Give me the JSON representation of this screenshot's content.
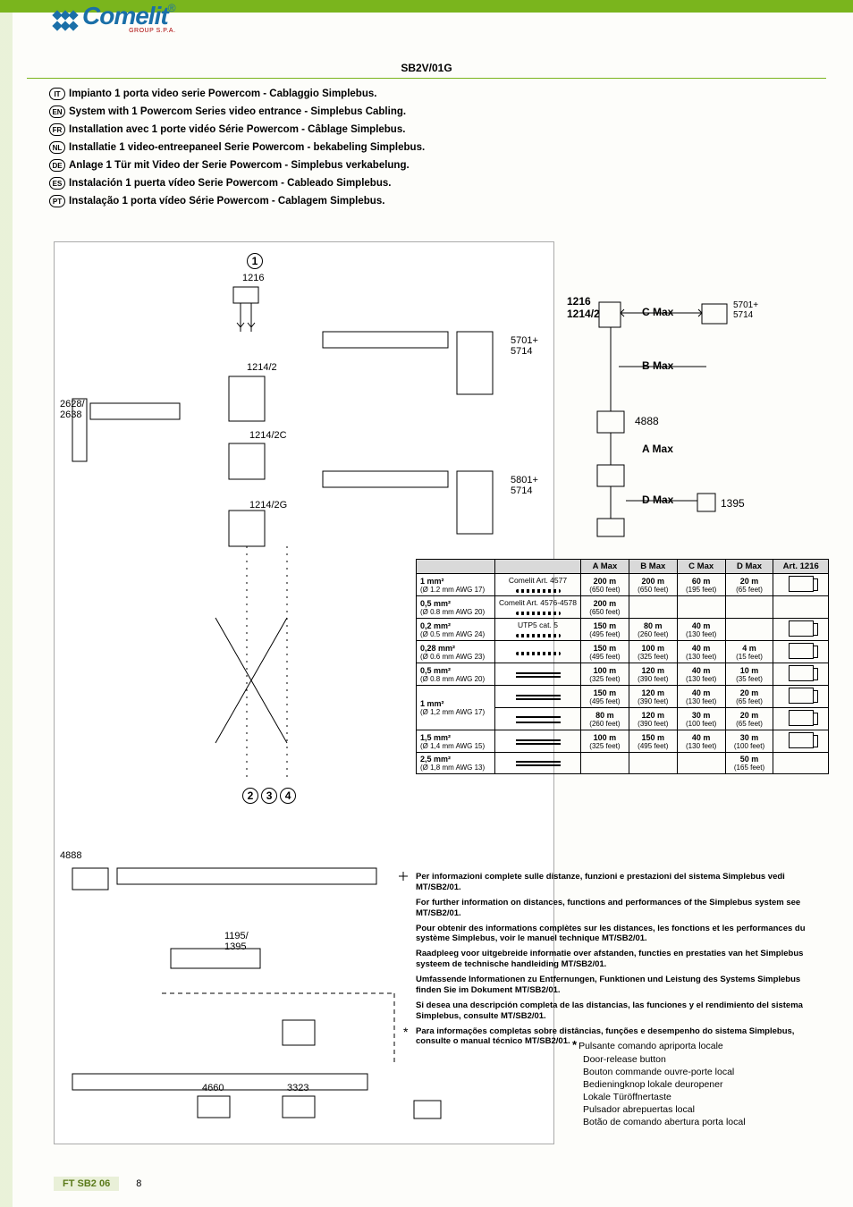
{
  "header": {
    "code": "SB2V/01G",
    "logo_text": "Comelit",
    "logo_sub": "GROUP S.P.A."
  },
  "languages": [
    {
      "code": "IT",
      "text": "Impianto 1 porta video serie Powercom - Cablaggio Simplebus."
    },
    {
      "code": "EN",
      "text": "System with 1 Powercom Series video entrance - Simplebus Cabling."
    },
    {
      "code": "FR",
      "text": "Installation avec 1 porte vidéo Série Powercom - Câblage Simplebus."
    },
    {
      "code": "NL",
      "text": "Installatie 1 video-entreepaneel Serie Powercom - bekabeling Simplebus."
    },
    {
      "code": "DE",
      "text": "Anlage 1 Tür mit Video der Serie Powercom - Simplebus verkabelung."
    },
    {
      "code": "ES",
      "text": "Instalación 1 puerta vídeo Serie Powercom - Cableado Simplebus."
    },
    {
      "code": "PT",
      "text": "Instalação 1 porta vídeo Série Powercom - Cablagem Simplebus."
    }
  ],
  "diagram": {
    "n1": "1",
    "n2": "2",
    "n3": "3",
    "n4": "4",
    "l1216": "1216",
    "l1214_2": "1214/2",
    "l1214_2c": "1214/2C",
    "l1214_2g": "1214/2G",
    "l2628": "2628/\n2638",
    "l4888": "4888",
    "l1195": "1195/\n1395",
    "l4660": "4660",
    "l3323": "3323",
    "l5701": "5701+\n5714",
    "l5801": "5801+\n5714",
    "star": "*"
  },
  "right_diagram": {
    "l1216": "1216",
    "l1214_2": "1214/2",
    "l4888": "4888",
    "l1395": "1395",
    "amax": "A Max",
    "bmax": "B Max",
    "cmax": "C Max",
    "dmax": "D Max",
    "l5701": "5701+\n5714"
  },
  "table": {
    "headers": [
      "",
      "",
      "A Max",
      "B Max",
      "C Max",
      "D Max",
      "Art. 1216"
    ],
    "rows": [
      {
        "cable": "1 mm²",
        "cable_sub": "(Ø 1.2 mm AWG 17)",
        "type": "Comelit Art. 4577",
        "icon": "twisted",
        "a": "200 m",
        "as": "(650 feet)",
        "b": "200 m",
        "bs": "(650 feet)",
        "c": "60 m",
        "cs": "(195 feet)",
        "d": "20 m",
        "ds": "(65 feet)",
        "art": true
      },
      {
        "cable": "0,5 mm²",
        "cable_sub": "(Ø 0.8 mm AWG 20)",
        "type": "Comelit Art. 4576-4578",
        "icon": "twisted",
        "a": "200 m",
        "as": "(650 feet)",
        "b": "",
        "bs": "",
        "c": "",
        "cs": "",
        "d": "",
        "ds": "",
        "art": false
      },
      {
        "cable": "0,2 mm²",
        "cable_sub": "(Ø 0.5 mm AWG 24)",
        "type": "UTP5 cat. 5",
        "icon": "twisted",
        "a": "150 m",
        "as": "(495 feet)",
        "b": "80 m",
        "bs": "(260 feet)",
        "c": "40 m",
        "cs": "(130 feet)",
        "d": "",
        "ds": "",
        "art": true
      },
      {
        "cable": "0,28 mm²",
        "cable_sub": "(Ø 0.6 mm AWG 23)",
        "type": "",
        "icon": "twisted",
        "a": "150 m",
        "as": "(495 feet)",
        "b": "100 m",
        "bs": "(325 feet)",
        "c": "40 m",
        "cs": "(130 feet)",
        "d": "4 m",
        "ds": "(15 feet)",
        "art": true
      },
      {
        "cable": "0,5 mm²",
        "cable_sub": "(Ø 0.8 mm AWG 20)",
        "type": "",
        "icon": "double",
        "a": "100 m",
        "as": "(325 feet)",
        "b": "120 m",
        "bs": "(390 feet)",
        "c": "40 m",
        "cs": "(130 feet)",
        "d": "10 m",
        "ds": "(35 feet)",
        "art": true
      },
      {
        "cable": "1 mm²",
        "cable_sub": "(Ø 1,2 mm AWG 17)",
        "type": "",
        "icon": "double",
        "rowspan": 2,
        "a": "150 m",
        "as": "(495 feet)",
        "b": "120 m",
        "bs": "(390 feet)",
        "c": "40 m",
        "cs": "(130 feet)",
        "d": "20 m",
        "ds": "(65 feet)",
        "art": true
      },
      {
        "cable": "",
        "cable_sub": "",
        "type": "",
        "icon": "pair",
        "skipCable": true,
        "a": "80 m",
        "as": "(260 feet)",
        "b": "120 m",
        "bs": "(390 feet)",
        "c": "30 m",
        "cs": "(100 feet)",
        "d": "20 m",
        "ds": "(65 feet)",
        "art": true
      },
      {
        "cable": "1,5 mm²",
        "cable_sub": "(Ø 1,4 mm AWG 15)",
        "type": "",
        "icon": "double",
        "a": "100 m",
        "as": "(325 feet)",
        "b": "150 m",
        "bs": "(495 feet)",
        "c": "40 m",
        "cs": "(130 feet)",
        "d": "30 m",
        "ds": "(100 feet)",
        "art": true
      },
      {
        "cable": "2,5 mm²",
        "cable_sub": "(Ø 1,8 mm AWG 13)",
        "type": "",
        "icon": "double",
        "a": "",
        "as": "",
        "b": "",
        "bs": "",
        "c": "",
        "cs": "",
        "d": "50 m",
        "ds": "(165 feet)",
        "art": false
      }
    ]
  },
  "notes": [
    "Per informazioni complete sulle distanze, funzioni e prestazioni del sistema Simplebus vedi MT/SB2/01.",
    "For further information on distances, functions and performances of the Simplebus system see MT/SB2/01.",
    "Pour obtenir des informations complètes sur les distances, les fonctions et les performances du système Simplebus, voir le manuel technique MT/SB2/01.",
    "Raadpleeg voor uitgebreide informatie over afstanden, functies en prestaties van het Simplebus systeem de technische handleiding MT/SB2/01.",
    "Umfassende Informationen zu Entfernungen, Funktionen und Leistung des Systems Simplebus finden Sie im Dokument MT/SB2/01.",
    "Si desea una descripción completa de las distancias, las funciones y el rendimiento del sistema Simplebus, consulte MT/SB2/01.",
    "Para informações completas sobre distâncias, funções e desempenho do sistema Simplebus, consulte o manual técnico MT/SB2/01."
  ],
  "legend": [
    "Pulsante comando apriporta locale",
    "Door-release button",
    "Bouton commande ouvre-porte local",
    "Bedieningknop lokale deuropener",
    "Lokale Türöffnertaste",
    "Pulsador abrepuertas local",
    "Botão de comando abertura porta local"
  ],
  "footer": {
    "code": "FT SB2 06",
    "page": "8"
  }
}
